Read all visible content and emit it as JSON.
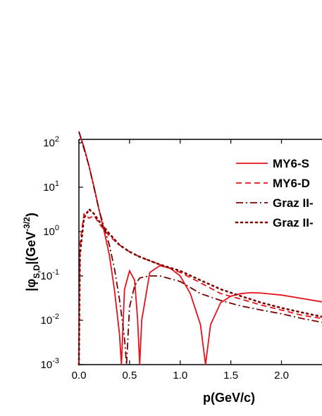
{
  "chart_data": {
    "type": "line",
    "xlabel": "p(GeV/c)",
    "ylabel": {
      "text": "|φ",
      "subscript": "S,D",
      "middle": "|(GeV",
      "superscript": "-3/2",
      "end": ")"
    },
    "log_y": true,
    "xlim": [
      0,
      2.4
    ],
    "ylim": [
      0.001,
      120
    ],
    "xticks": [
      {
        "value": 0,
        "label": "0.0"
      },
      0.5,
      {
        "value": 1,
        "label": "1.0"
      },
      1.5,
      {
        "value": 2,
        "label": "2.0"
      }
    ],
    "yticks": [
      {
        "value": 0.001,
        "label": "10",
        "exponent": "-3"
      },
      {
        "value": 0.01,
        "label": "10",
        "exponent": "-2"
      },
      {
        "value": 0.1,
        "label": "10",
        "exponent": "-1"
      },
      {
        "value": 1,
        "label": "10",
        "exponent": "0"
      },
      {
        "value": 10,
        "label": "10",
        "exponent": "1"
      },
      {
        "value": 100,
        "label": "10",
        "exponent": "2"
      }
    ],
    "legend": "upper right",
    "series": [
      {
        "name": "MY6-S",
        "color": "#e8101a",
        "line_style": "solid",
        "x": [
          0,
          0.05,
          0.1,
          0.15,
          0.2,
          0.25,
          0.3,
          0.35,
          0.4,
          0.42,
          0.45,
          0.5,
          0.55,
          0.58,
          0.6,
          0.62,
          0.7,
          0.8,
          0.9,
          1.0,
          1.1,
          1.2,
          1.25,
          1.3,
          1.4,
          1.5,
          1.6,
          1.7,
          1.8,
          2.0,
          2.2,
          2.4
        ],
        "values": [
          180,
          80,
          30,
          10,
          3,
          1,
          0.3,
          0.05,
          0.005,
          0.001,
          0.05,
          0.13,
          0.08,
          0.01,
          0.001,
          0.01,
          0.12,
          0.17,
          0.15,
          0.1,
          0.04,
          0.008,
          0.001,
          0.008,
          0.025,
          0.035,
          0.04,
          0.042,
          0.041,
          0.037,
          0.031,
          0.026
        ]
      },
      {
        "name": "MY6-D",
        "color": "#e8101a",
        "line_style": "dashed",
        "x": [
          0,
          0.01,
          0.05,
          0.1,
          0.15,
          0.2,
          0.3,
          0.4,
          0.5,
          0.6,
          0.7,
          0.8,
          1.0,
          1.2,
          1.4,
          1.6,
          1.8,
          2.0,
          2.2,
          2.4
        ],
        "values": [
          0.001,
          0.5,
          2.5,
          2,
          2.3,
          1.5,
          0.8,
          0.5,
          0.35,
          0.27,
          0.22,
          0.18,
          0.12,
          0.07,
          0.04,
          0.03,
          0.022,
          0.017,
          0.013,
          0.011
        ]
      },
      {
        "name": "Graz II-",
        "color": "#7a0000",
        "line_style": "dashdot",
        "x": [
          0,
          0.1,
          0.2,
          0.3,
          0.35,
          0.4,
          0.45,
          0.47,
          0.5,
          0.55,
          0.6,
          0.7,
          0.8,
          1.0,
          1.2,
          1.4,
          1.6,
          1.8,
          2.0,
          2.2,
          2.4
        ],
        "values": [
          180,
          30,
          3,
          0.5,
          0.15,
          0.03,
          0.004,
          0.001,
          0.02,
          0.06,
          0.09,
          0.1,
          0.1,
          0.075,
          0.04,
          0.028,
          0.021,
          0.017,
          0.014,
          0.011,
          0.009
        ]
      },
      {
        "name": "Graz II-",
        "color": "#7a0000",
        "line_style": "dotted",
        "x": [
          0,
          0.01,
          0.05,
          0.1,
          0.15,
          0.2,
          0.3,
          0.4,
          0.5,
          0.6,
          0.8,
          1.0,
          1.2,
          1.4,
          1.6,
          1.8,
          2.0,
          2.2,
          2.4
        ],
        "values": [
          0.001,
          0.3,
          2,
          3.2,
          2.5,
          1.7,
          0.9,
          0.5,
          0.35,
          0.27,
          0.18,
          0.13,
          0.08,
          0.05,
          0.035,
          0.025,
          0.019,
          0.015,
          0.012
        ]
      }
    ]
  }
}
